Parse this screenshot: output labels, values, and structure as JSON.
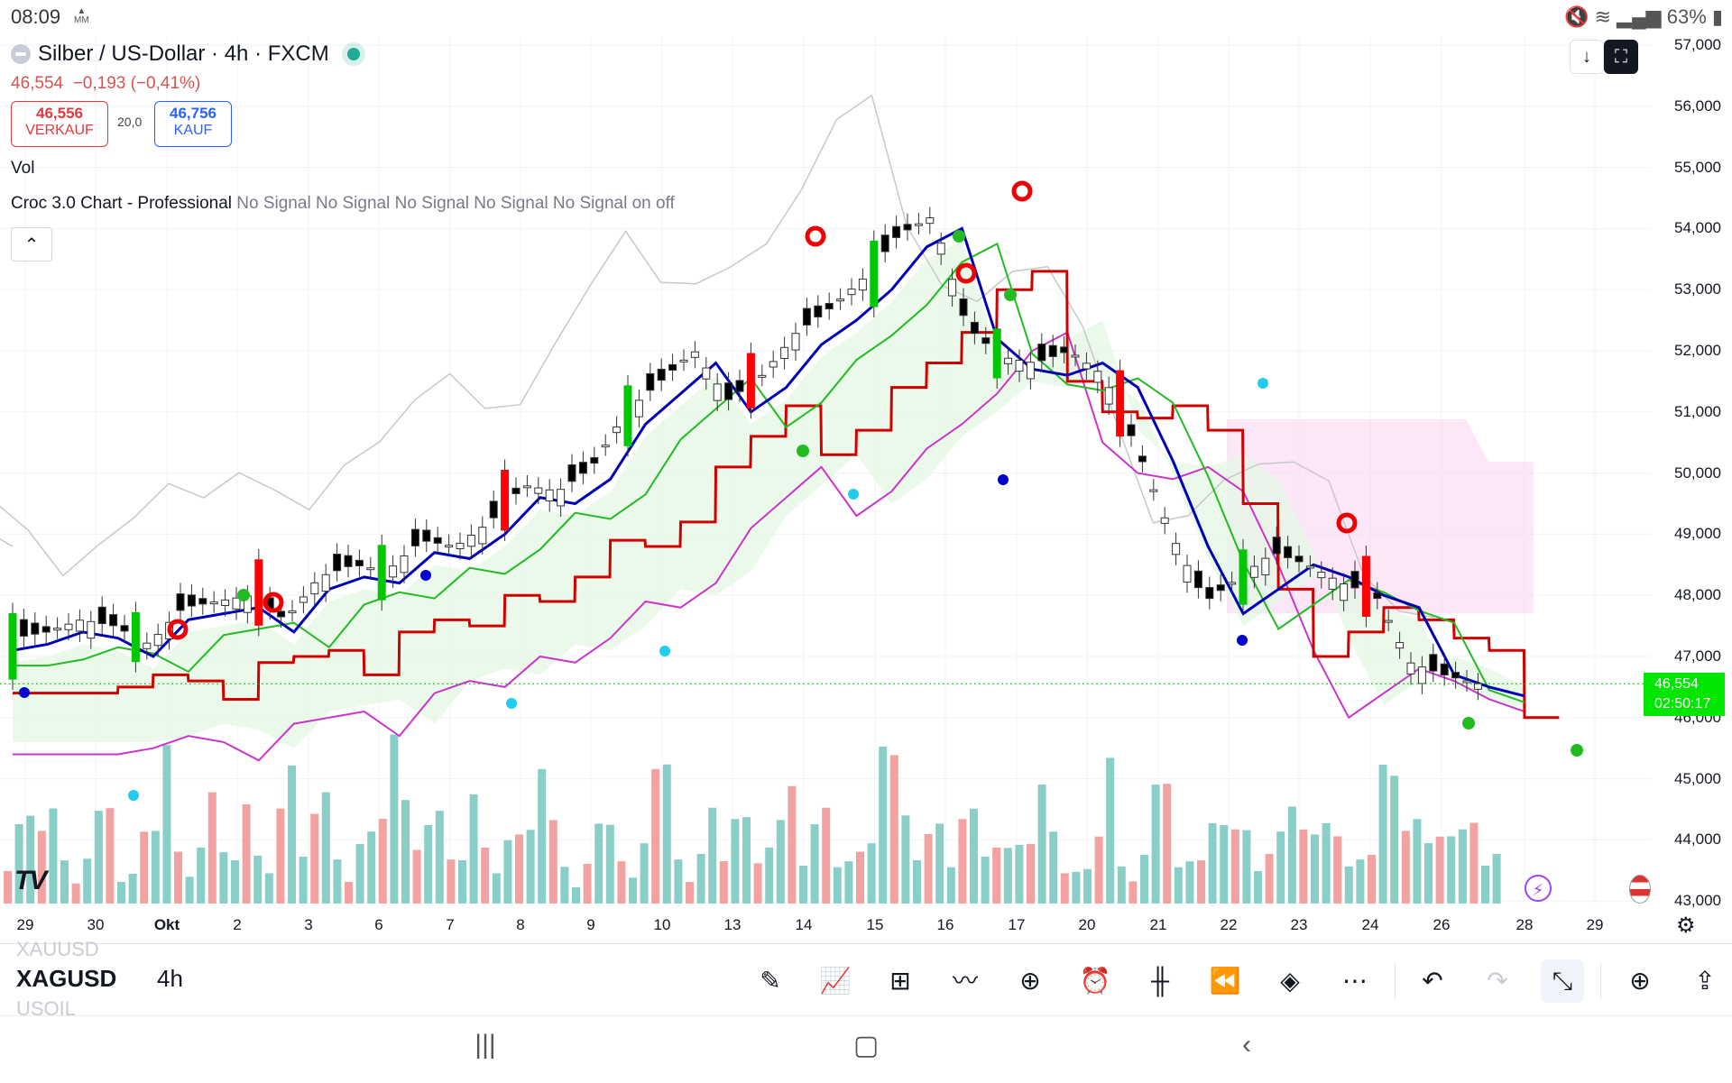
{
  "status_bar": {
    "time": "08:09",
    "notif_icon_label": "MM",
    "icons": [
      "mute-icon",
      "wifi-icon",
      "signal-icon",
      "battery-icon"
    ],
    "battery": "63%"
  },
  "header": {
    "symbol_title": "Silber / US-Dollar · 4h · FXCM",
    "price": "46,554",
    "change": "−0,193 (−0,41%)",
    "sell": {
      "price": "46,556",
      "label": "VERKAUF"
    },
    "spread": "20,0",
    "buy": {
      "price": "46,756",
      "label": "KAUF"
    }
  },
  "indicators": {
    "volume": "Vol",
    "croc_name": "Croc 3.0 Chart - Professional",
    "croc_signals": "No Signal No Signal No Signal No Signal No Signal on off"
  },
  "top_buttons": {
    "download_icon": "download-icon",
    "screenshot_icon": "screenshot-icon"
  },
  "y_axis": [
    "57,000",
    "56,000",
    "55,000",
    "54,000",
    "53,000",
    "52,000",
    "51,000",
    "50,000",
    "49,000",
    "48,000",
    "47,000",
    "46,000",
    "45,000",
    "44,000",
    "43,000"
  ],
  "x_axis": [
    "29",
    "30",
    "Okt",
    "2",
    "3",
    "6",
    "7",
    "8",
    "9",
    "10",
    "13",
    "14",
    "15",
    "16",
    "17",
    "20",
    "21",
    "22",
    "23",
    "24",
    "26",
    "28",
    "29"
  ],
  "last_price_tag": {
    "price": "46,554",
    "countdown": "02:50:17",
    "color": "#00e600"
  },
  "colors": {
    "up": "#00c800",
    "down": "#ff0000",
    "vol_up": "#89cfc7",
    "vol_down": "#f3a2a2",
    "blue_line": "#0000b4",
    "red_line": "#d00000"
  },
  "chart_data": {
    "type": "candlestick",
    "instrument": "Silber / US-Dollar",
    "interval": "4h",
    "ylim": [
      43000,
      57000
    ],
    "approx_close_path": [
      47.3,
      47.4,
      47.6,
      47.5,
      47.2,
      47.8,
      47.9,
      48.0,
      47.6,
      48.3,
      48.5,
      48.4,
      48.9,
      48.8,
      49.2,
      49.8,
      49.7,
      50.1,
      51.0,
      51.5,
      52.0,
      51.2,
      51.6,
      52.3,
      52.7,
      53.2,
      53.9,
      54.2,
      52.4,
      51.9,
      51.8,
      52.0,
      51.6,
      50.4,
      49.0,
      47.9,
      48.3,
      48.7,
      48.5,
      48.2,
      48.0,
      46.9,
      46.7,
      46.554
    ],
    "last": 46554
  },
  "toolbar": {
    "symbol": "XAGUSD",
    "interval": "4h",
    "ghost_above": "XAUUSD",
    "ghost_below": "USOIL",
    "buttons": [
      "pencil-icon",
      "indicators-icon",
      "templates-icon",
      "compare-icon",
      "add-icon",
      "alert-icon",
      "chart-type-icon",
      "replay-icon",
      "layers-icon",
      "more-icon",
      "undo-icon",
      "redo-icon",
      "fullscreen-exit-icon",
      "add-price-icon",
      "share-icon"
    ]
  },
  "nav_bar": [
    "recent-apps-icon",
    "home-icon",
    "back-icon"
  ]
}
